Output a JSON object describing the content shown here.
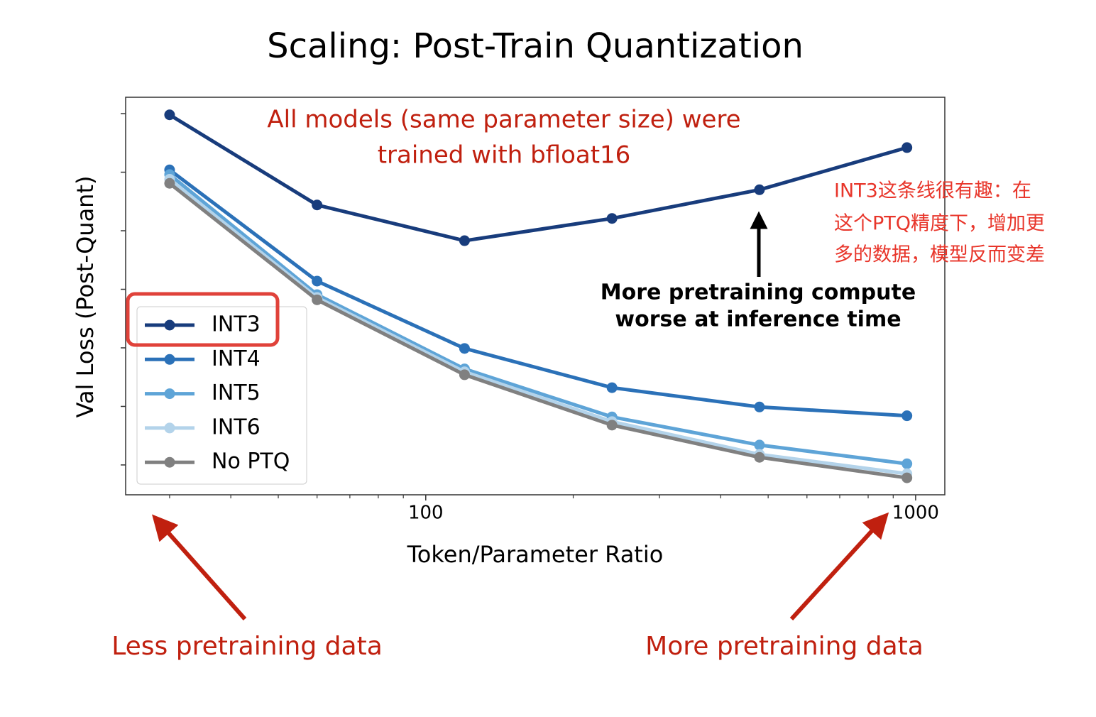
{
  "chart_data": {
    "type": "line",
    "title": "Scaling: Post-Train Quantization",
    "x_label": "Token/Parameter Ratio",
    "y_label": "Val Loss (Post-Quant)",
    "x": [
      30,
      60,
      120,
      240,
      480,
      960
    ],
    "x_log": true,
    "xlim": [
      24.4,
      1147
    ],
    "xticks": [
      100,
      1000
    ],
    "xminorticks": [
      30,
      40,
      50,
      60,
      70,
      80,
      90,
      200,
      300,
      400,
      500,
      600,
      700,
      800,
      900
    ],
    "ylim": [
      -0.51,
      6.28
    ],
    "yticks": [
      0,
      1,
      2,
      3,
      4,
      5,
      6
    ],
    "legend": "lower left",
    "series": [
      {
        "name": "INT3",
        "color": "#183c7c",
        "values": [
          5.98,
          4.44,
          3.83,
          4.21,
          4.7,
          5.42
        ]
      },
      {
        "name": "INT4",
        "color": "#2b71b8",
        "values": [
          5.04,
          3.14,
          1.99,
          1.32,
          0.99,
          0.84
        ]
      },
      {
        "name": "INT5",
        "color": "#5ea4d7",
        "values": [
          4.96,
          2.91,
          1.64,
          0.82,
          0.34,
          0.02
        ]
      },
      {
        "name": "INT6",
        "color": "#b3d3ea",
        "values": [
          4.88,
          2.86,
          1.59,
          0.74,
          0.18,
          -0.15
        ]
      },
      {
        "name": "No PTQ",
        "color": "#808080",
        "values": [
          4.81,
          2.82,
          1.54,
          0.68,
          0.13,
          -0.22
        ]
      }
    ],
    "annotations": {
      "setup": [
        "All models (same parameter size) were",
        "trained with bfloat16"
      ],
      "inference": [
        "More pretraining compute",
        "worse at inference time"
      ],
      "less_data": "Less pretraining data",
      "more_data": "More pretraining data",
      "note": [
        "INT3这条线很有趣：在",
        "这个PTQ精度下，增加更",
        "多的数据，模型反而变差"
      ]
    }
  }
}
